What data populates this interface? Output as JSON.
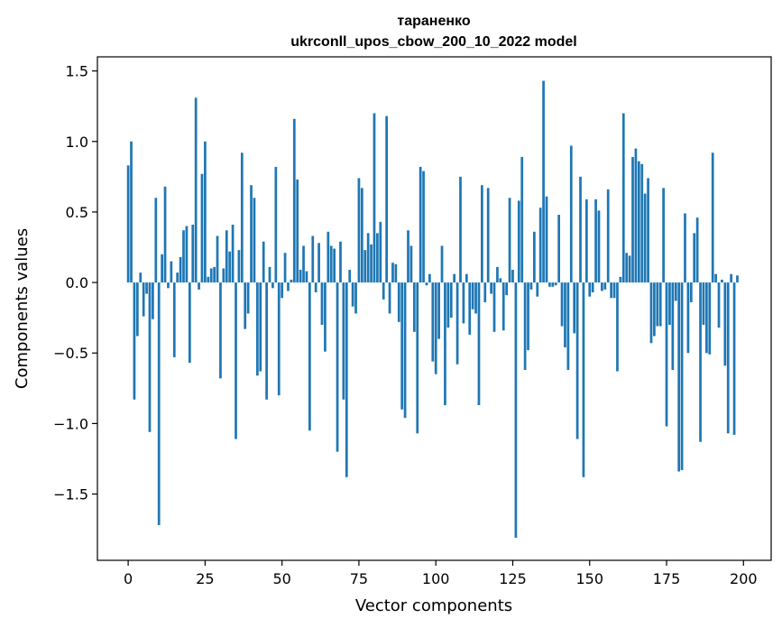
{
  "chart_data": {
    "type": "bar",
    "title": "тараненко",
    "subtitle": "ukrconll_upos_cbow_200_10_2022 model",
    "xlabel": "Vector components",
    "ylabel": "Components values",
    "xlim": [
      -10,
      209
    ],
    "ylim": [
      -1.97,
      1.6
    ],
    "xticks": [
      0,
      25,
      50,
      75,
      100,
      125,
      150,
      175,
      200
    ],
    "yticks": [
      -1.5,
      -1.0,
      -0.5,
      0.0,
      0.5,
      1.0,
      1.5
    ],
    "ytick_labels": [
      "−1.5",
      "−1.0",
      "−0.5",
      "0.0",
      "0.5",
      "1.0",
      "1.5"
    ],
    "grid": false,
    "bar_color": "#1f77b4",
    "values": [
      0.83,
      1.0,
      -0.83,
      -0.38,
      0.07,
      -0.24,
      -0.08,
      -1.06,
      -0.26,
      0.6,
      -1.72,
      0.2,
      0.68,
      -0.04,
      0.15,
      -0.53,
      0.07,
      0.18,
      0.37,
      0.4,
      -0.57,
      0.41,
      1.31,
      -0.05,
      0.77,
      1.0,
      0.04,
      0.1,
      0.11,
      0.33,
      -0.68,
      0.1,
      0.37,
      0.22,
      0.41,
      -1.11,
      0.23,
      0.92,
      -0.33,
      -0.22,
      0.69,
      0.6,
      -0.66,
      -0.63,
      0.29,
      -0.83,
      0.11,
      -0.04,
      0.82,
      -0.8,
      -0.11,
      0.21,
      -0.06,
      0.02,
      1.16,
      0.73,
      0.09,
      0.26,
      0.08,
      -1.05,
      0.33,
      -0.07,
      0.28,
      -0.3,
      -0.49,
      0.36,
      0.26,
      0.24,
      -1.2,
      0.29,
      -0.83,
      -1.38,
      0.09,
      -0.17,
      -0.22,
      0.74,
      0.67,
      0.23,
      0.35,
      0.27,
      1.2,
      0.35,
      0.43,
      -0.12,
      1.18,
      -0.22,
      0.14,
      0.13,
      -0.28,
      -0.9,
      -0.96,
      0.37,
      0.26,
      -0.35,
      -1.07,
      0.82,
      0.79,
      -0.02,
      0.06,
      -0.56,
      -0.65,
      -0.4,
      0.26,
      -0.87,
      -0.32,
      -0.25,
      0.06,
      -0.58,
      0.75,
      -0.29,
      0.06,
      -0.37,
      -0.19,
      -0.22,
      -0.87,
      0.69,
      -0.14,
      0.67,
      -0.08,
      -0.35,
      0.11,
      0.03,
      -0.34,
      -0.09,
      0.6,
      0.09,
      -1.81,
      0.58,
      0.89,
      -0.62,
      -0.48,
      -0.05,
      0.36,
      -0.1,
      0.53,
      1.43,
      0.61,
      -0.03,
      -0.03,
      -0.02,
      0.48,
      -0.31,
      -0.46,
      -0.62,
      0.97,
      -0.36,
      -1.11,
      0.75,
      -1.38,
      0.59,
      -0.1,
      -0.07,
      0.59,
      0.51,
      -0.06,
      -0.05,
      0.66,
      -0.11,
      -0.11,
      -0.63,
      0.04,
      1.2,
      0.21,
      0.19,
      0.89,
      0.95,
      0.86,
      0.84,
      0.63,
      0.74,
      -0.43,
      -0.38,
      -0.31,
      -0.31,
      0.67,
      -1.02,
      -0.3,
      -0.62,
      -0.13,
      -1.34,
      -1.33,
      0.49,
      -0.5,
      -0.14,
      0.35,
      0.46,
      -1.13,
      -0.3,
      -0.5,
      -0.51,
      0.92,
      0.06,
      -0.32,
      0.02,
      -0.59,
      -1.07,
      0.06,
      -1.08,
      0.05
    ]
  }
}
